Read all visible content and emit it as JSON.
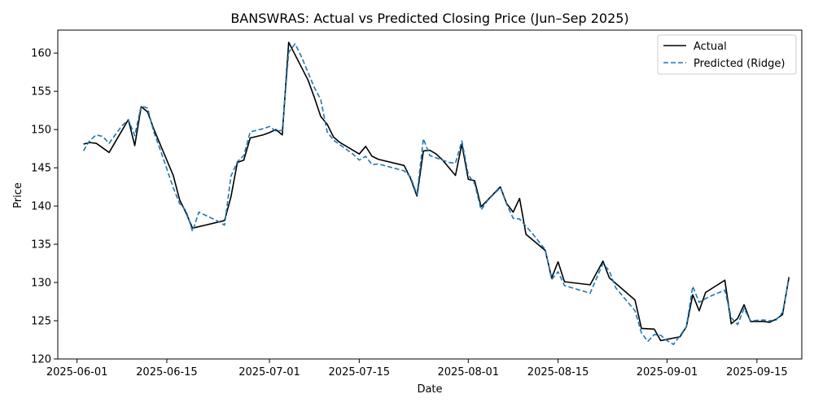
{
  "chart_data": {
    "type": "line",
    "title": "BANSWRAS: Actual vs Predicted Closing Price (Jun–Sep 2025)",
    "xlabel": "Date",
    "ylabel": "Price",
    "x_tick_labels": [
      "2025-06-01",
      "2025-06-15",
      "2025-07-01",
      "2025-07-15",
      "2025-08-01",
      "2025-08-15",
      "2025-09-01",
      "2025-09-15"
    ],
    "y_ticks": [
      120,
      125,
      130,
      135,
      140,
      145,
      150,
      155,
      160
    ],
    "xlim": [
      "2025-05-29",
      "2025-09-22"
    ],
    "ylim": [
      120,
      163
    ],
    "grid": false,
    "legend_position": "top-right",
    "series": [
      {
        "name": "Actual",
        "color": "#000000",
        "style": "solid",
        "points": [
          [
            "2025-06-02",
            148.1
          ],
          [
            "2025-06-03",
            148.3
          ],
          [
            "2025-06-04",
            148.2
          ],
          [
            "2025-06-06",
            147.0
          ],
          [
            "2025-06-09",
            151.3
          ],
          [
            "2025-06-10",
            147.9
          ],
          [
            "2025-06-11",
            153.0
          ],
          [
            "2025-06-12",
            152.3
          ],
          [
            "2025-06-13",
            150.0
          ],
          [
            "2025-06-16",
            144.0
          ],
          [
            "2025-06-17",
            140.8
          ],
          [
            "2025-06-18",
            139.1
          ],
          [
            "2025-06-19",
            137.1
          ],
          [
            "2025-06-24",
            138.1
          ],
          [
            "2025-06-25",
            141.2
          ],
          [
            "2025-06-26",
            145.7
          ],
          [
            "2025-06-27",
            146.0
          ],
          [
            "2025-06-28",
            148.9
          ],
          [
            "2025-06-30",
            149.3
          ],
          [
            "2025-07-01",
            149.6
          ],
          [
            "2025-07-02",
            150.0
          ],
          [
            "2025-07-03",
            149.3
          ],
          [
            "2025-07-04",
            161.4
          ],
          [
            "2025-07-07",
            156.5
          ],
          [
            "2025-07-08",
            154.2
          ],
          [
            "2025-07-09",
            151.7
          ],
          [
            "2025-07-10",
            150.7
          ],
          [
            "2025-07-11",
            149.0
          ],
          [
            "2025-07-12",
            148.3
          ],
          [
            "2025-07-15",
            146.8
          ],
          [
            "2025-07-16",
            147.8
          ],
          [
            "2025-07-17",
            146.5
          ],
          [
            "2025-07-18",
            146.1
          ],
          [
            "2025-07-22",
            145.3
          ],
          [
            "2025-07-23",
            143.6
          ],
          [
            "2025-07-24",
            141.3
          ],
          [
            "2025-07-25",
            147.2
          ],
          [
            "2025-07-26",
            147.3
          ],
          [
            "2025-07-27",
            146.8
          ],
          [
            "2025-07-28",
            146.0
          ],
          [
            "2025-07-30",
            144.0
          ],
          [
            "2025-07-31",
            148.1
          ],
          [
            "2025-08-01",
            143.5
          ],
          [
            "2025-08-02",
            143.3
          ],
          [
            "2025-08-03",
            139.9
          ],
          [
            "2025-08-06",
            142.5
          ],
          [
            "2025-08-07",
            140.3
          ],
          [
            "2025-08-08",
            139.2
          ],
          [
            "2025-08-09",
            141.0
          ],
          [
            "2025-08-10",
            136.3
          ],
          [
            "2025-08-13",
            134.2
          ],
          [
            "2025-08-14",
            130.6
          ],
          [
            "2025-08-15",
            132.7
          ],
          [
            "2025-08-16",
            130.1
          ],
          [
            "2025-08-20",
            129.7
          ],
          [
            "2025-08-22",
            132.8
          ],
          [
            "2025-08-23",
            130.6
          ],
          [
            "2025-08-27",
            127.7
          ],
          [
            "2025-08-28",
            124.0
          ],
          [
            "2025-08-30",
            123.9
          ],
          [
            "2025-08-31",
            122.4
          ],
          [
            "2025-09-03",
            122.9
          ],
          [
            "2025-09-04",
            124.2
          ],
          [
            "2025-09-05",
            128.4
          ],
          [
            "2025-09-06",
            126.3
          ],
          [
            "2025-09-07",
            128.7
          ],
          [
            "2025-09-10",
            130.3
          ],
          [
            "2025-09-11",
            124.6
          ],
          [
            "2025-09-12",
            125.3
          ],
          [
            "2025-09-13",
            127.1
          ],
          [
            "2025-09-14",
            124.9
          ],
          [
            "2025-09-16",
            124.9
          ],
          [
            "2025-09-17",
            124.8
          ],
          [
            "2025-09-18",
            125.2
          ],
          [
            "2025-09-19",
            125.8
          ],
          [
            "2025-09-20",
            130.7
          ]
        ]
      },
      {
        "name": "Predicted (Ridge)",
        "color": "#1f77b4",
        "style": "dashed",
        "points": [
          [
            "2025-06-02",
            147.2
          ],
          [
            "2025-06-03",
            148.6
          ],
          [
            "2025-06-04",
            149.3
          ],
          [
            "2025-06-05",
            149.1
          ],
          [
            "2025-06-06",
            148.2
          ],
          [
            "2025-06-08",
            150.5
          ],
          [
            "2025-06-09",
            151.3
          ],
          [
            "2025-06-10",
            149.2
          ],
          [
            "2025-06-11",
            153.1
          ],
          [
            "2025-06-12",
            152.8
          ],
          [
            "2025-06-13",
            149.6
          ],
          [
            "2025-06-14",
            147.3
          ],
          [
            "2025-06-16",
            142.4
          ],
          [
            "2025-06-17",
            140.3
          ],
          [
            "2025-06-18",
            139.4
          ],
          [
            "2025-06-19",
            136.7
          ],
          [
            "2025-06-20",
            139.2
          ],
          [
            "2025-06-21",
            138.8
          ],
          [
            "2025-06-23",
            138.0
          ],
          [
            "2025-06-24",
            137.5
          ],
          [
            "2025-06-25",
            143.9
          ],
          [
            "2025-06-26",
            145.8
          ],
          [
            "2025-06-27",
            146.6
          ],
          [
            "2025-06-28",
            149.7
          ],
          [
            "2025-06-30",
            150.1
          ],
          [
            "2025-07-01",
            150.4
          ],
          [
            "2025-07-02",
            149.8
          ],
          [
            "2025-07-03",
            149.9
          ],
          [
            "2025-07-04",
            160.1
          ],
          [
            "2025-07-05",
            161.2
          ],
          [
            "2025-07-06",
            159.5
          ],
          [
            "2025-07-08",
            155.5
          ],
          [
            "2025-07-09",
            153.9
          ],
          [
            "2025-07-10",
            149.7
          ],
          [
            "2025-07-11",
            148.6
          ],
          [
            "2025-07-12",
            148.0
          ],
          [
            "2025-07-14",
            146.8
          ],
          [
            "2025-07-15",
            146.0
          ],
          [
            "2025-07-16",
            146.5
          ],
          [
            "2025-07-17",
            145.4
          ],
          [
            "2025-07-18",
            145.5
          ],
          [
            "2025-07-22",
            144.6
          ],
          [
            "2025-07-23",
            143.8
          ],
          [
            "2025-07-24",
            141.5
          ],
          [
            "2025-07-25",
            148.8
          ],
          [
            "2025-07-26",
            146.6
          ],
          [
            "2025-07-27",
            146.3
          ],
          [
            "2025-07-29",
            145.7
          ],
          [
            "2025-07-30",
            145.6
          ],
          [
            "2025-07-31",
            148.5
          ],
          [
            "2025-08-01",
            144.1
          ],
          [
            "2025-08-02",
            142.9
          ],
          [
            "2025-08-03",
            139.5
          ],
          [
            "2025-08-04",
            140.7
          ],
          [
            "2025-08-06",
            142.4
          ],
          [
            "2025-08-07",
            140.2
          ],
          [
            "2025-08-08",
            138.4
          ],
          [
            "2025-08-09",
            138.3
          ],
          [
            "2025-08-11",
            136.4
          ],
          [
            "2025-08-13",
            134.3
          ],
          [
            "2025-08-14",
            130.4
          ],
          [
            "2025-08-15",
            131.4
          ],
          [
            "2025-08-16",
            129.6
          ],
          [
            "2025-08-20",
            128.6
          ],
          [
            "2025-08-22",
            132.5
          ],
          [
            "2025-08-23",
            131.5
          ],
          [
            "2025-08-24",
            129.3
          ],
          [
            "2025-08-27",
            126.3
          ],
          [
            "2025-08-28",
            123.4
          ],
          [
            "2025-08-29",
            122.3
          ],
          [
            "2025-08-30",
            123.2
          ],
          [
            "2025-08-31",
            123.1
          ],
          [
            "2025-09-01",
            122.4
          ],
          [
            "2025-09-02",
            121.9
          ],
          [
            "2025-09-04",
            124.2
          ],
          [
            "2025-09-05",
            129.5
          ],
          [
            "2025-09-06",
            127.4
          ],
          [
            "2025-09-07",
            127.9
          ],
          [
            "2025-09-08",
            128.3
          ],
          [
            "2025-09-10",
            129.0
          ],
          [
            "2025-09-11",
            125.4
          ],
          [
            "2025-09-12",
            124.5
          ],
          [
            "2025-09-13",
            126.6
          ],
          [
            "2025-09-14",
            125.0
          ],
          [
            "2025-09-16",
            125.1
          ],
          [
            "2025-09-17",
            125.0
          ],
          [
            "2025-09-18",
            125.1
          ],
          [
            "2025-09-19",
            126.1
          ],
          [
            "2025-09-20",
            130.5
          ]
        ]
      }
    ]
  }
}
